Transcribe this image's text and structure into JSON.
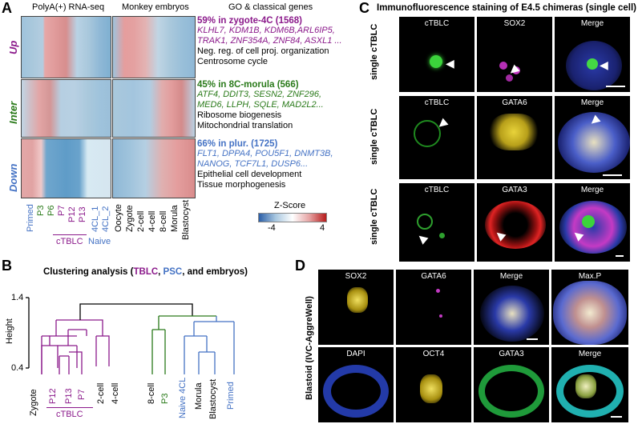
{
  "panelA": {
    "letter": "A",
    "header_rnaseq": "PolyA(+) RNA-seq",
    "header_embryos": "Monkey embryos",
    "header_go": "GO & classical genes",
    "row_labels": [
      "Up",
      "Inter",
      "Down"
    ],
    "groups": [
      {
        "title": "59% in zygote-4C (1568)",
        "genes": [
          "KLHL7, KDM1B, KDM6B,ARL6IP5,",
          "TRAK1, ZNF354A, ZNF84, ASXL1 ..."
        ],
        "terms": [
          "Neg. reg. of cell proj. organization",
          "Centrosome cycle"
        ]
      },
      {
        "title": "45% in 8C-morula (566)",
        "genes": [
          "ATF4, DDIT3, SESN2, ZNF296,",
          "MED6, LLPH, SQLE, MAD2L2..."
        ],
        "terms": [
          "Ribosome biogenesis",
          "Mitochondrial translation"
        ]
      },
      {
        "title": "66% in plur. (1725)",
        "genes": [
          "FLT1, DPPA4, POU5F1, DNMT3B,",
          "NANOG, TCF7L1,  DUSP6..."
        ],
        "terms": [
          "Epithelial cell development",
          "Tissue morphogenesis"
        ]
      }
    ],
    "sample_labels": [
      "Primed",
      "P3",
      "P6",
      "P7",
      "P12",
      "P13",
      "4CL_1",
      "4CL_2"
    ],
    "embryo_labels": [
      "Oocyte",
      "Zygote",
      "2-cell",
      "4-cell",
      "8-cell",
      "Morula",
      "Blastocyst"
    ],
    "group_ctblc": "cTBLC",
    "group_naive": "Naive",
    "zscore_title": "Z-Score",
    "zscore_min": "-4",
    "zscore_max": "4"
  },
  "panelB": {
    "letter": "B",
    "title_prefix": "Clustering analysis (",
    "title_tblc": "TBLC",
    "title_comma": ", ",
    "title_psc": "PSC",
    "title_suffix": ", and embryos)",
    "ylabel": "Height",
    "ytick_top": "1.4",
    "ytick_bottom": "0.4",
    "leaves": [
      "Zygote",
      "P12",
      "P13",
      "P7",
      "2-cell",
      "4-cell",
      "8-cell",
      "P3",
      "Naive 4CL",
      "Morula",
      "Blastocyst",
      "Primed"
    ],
    "group_ctblc": "cTBLC"
  },
  "panelC": {
    "letter": "C",
    "title": "Immunofluorescence staining of E4.5 chimeras (single cell)",
    "rows": [
      {
        "side": "single cTBLC",
        "labels": [
          "cTBLC",
          "SOX2",
          "Merge"
        ]
      },
      {
        "side": "single cTBLC",
        "labels": [
          "cTBLC",
          "GATA6",
          "Merge"
        ]
      },
      {
        "side": "single cTBLC",
        "labels": [
          "cTBLC",
          "GATA3",
          "Merge"
        ]
      }
    ]
  },
  "panelD": {
    "letter": "D",
    "side": "Blastoid (IVC-AggreWell)",
    "row1": [
      "SOX2",
      "GATA6",
      "Merge",
      "Max.P"
    ],
    "row2": [
      "DAPI",
      "OCT4",
      "GATA3",
      "Merge"
    ]
  },
  "colors": {
    "purple": "#8b1a8b",
    "green": "#2a7a1a",
    "blue": "#4472c4",
    "heat_low": "#3a6fb0",
    "heat_high": "#c0392b"
  }
}
